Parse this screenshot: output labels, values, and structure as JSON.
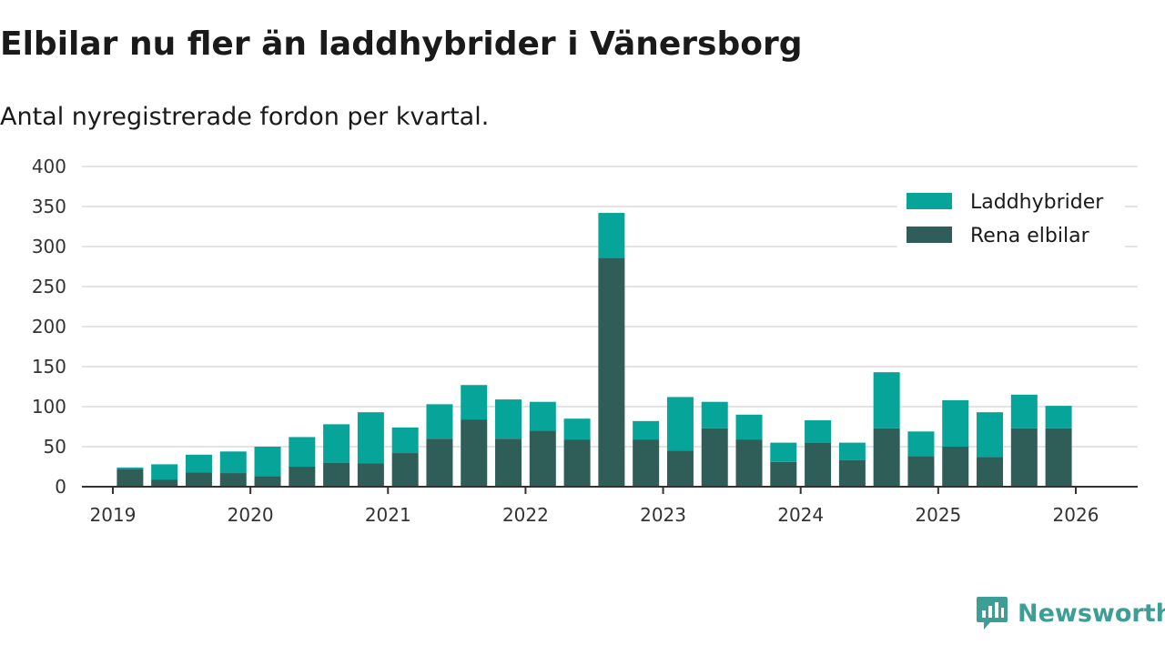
{
  "header": {
    "title": "Elbilar nu fler än laddhybrider i Vänersborg",
    "subtitle": "Antal nyregistrerade fordon per kvartal."
  },
  "brand": {
    "name": "Newsworthy"
  },
  "colors": {
    "laddhybrider": "#07a599",
    "rena_elbilar": "#2e5e57",
    "grid": "#dcdcdc",
    "axis": "#333333",
    "brand": "#3d9e96"
  },
  "chart_data": {
    "type": "bar",
    "stacked": true,
    "title": "Elbilar nu fler än laddhybrider i Vänersborg",
    "subtitle": "Antal nyregistrerade fordon per kvartal.",
    "xlabel": "",
    "ylabel": "",
    "ylim": [
      0,
      400
    ],
    "yticks": [
      0,
      50,
      100,
      150,
      200,
      250,
      300,
      350,
      400
    ],
    "xticks": [
      "2019",
      "2020",
      "2021",
      "2022",
      "2023",
      "2024",
      "2025",
      "2026"
    ],
    "grid": true,
    "legend_position": "top-right",
    "categories": [
      "2019 Q2",
      "2019 Q3",
      "2019 Q4",
      "2020 Q1",
      "2020 Q2",
      "2020 Q3",
      "2020 Q4",
      "2021 Q1",
      "2021 Q2",
      "2021 Q3",
      "2021 Q4",
      "2022 Q1",
      "2022 Q2",
      "2022 Q3",
      "2022 Q4",
      "2023 Q1",
      "2023 Q2",
      "2023 Q3",
      "2023 Q4",
      "2024 Q1",
      "2024 Q2",
      "2024 Q3",
      "2024 Q4",
      "2025 Q1",
      "2025 Q2",
      "2025 Q3",
      "2025 Q4",
      "2026 Q1"
    ],
    "series": [
      {
        "name": "Rena elbilar",
        "values": [
          22,
          9,
          18,
          17,
          13,
          25,
          30,
          29,
          42,
          60,
          84,
          60,
          70,
          59,
          286,
          59,
          45,
          73,
          59,
          31,
          55,
          33,
          73,
          38,
          50,
          37,
          73,
          73
        ]
      },
      {
        "name": "Laddhybrider",
        "values": [
          2,
          19,
          22,
          27,
          37,
          37,
          48,
          64,
          32,
          43,
          43,
          49,
          36,
          26,
          56,
          23,
          67,
          33,
          31,
          24,
          28,
          22,
          70,
          31,
          58,
          56,
          42,
          28
        ]
      }
    ]
  }
}
